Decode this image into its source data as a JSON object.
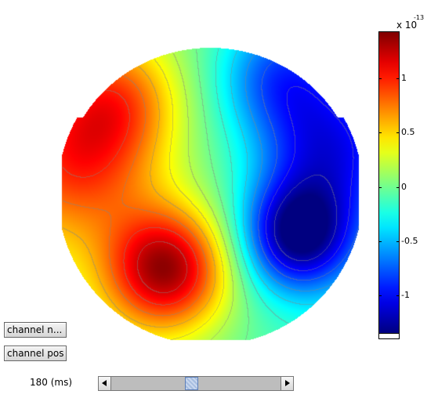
{
  "colorbar": {
    "exponent_base": "x 10",
    "exponent_power": "-13",
    "ticks": [
      {
        "label": "1",
        "value": 1
      },
      {
        "label": "0.5",
        "value": 0.5
      },
      {
        "label": "0",
        "value": 0
      },
      {
        "label": "-0.5",
        "value": -0.5
      },
      {
        "label": "-1",
        "value": -1
      }
    ],
    "range": [
      -1.35,
      1.43
    ],
    "colormap": "jet"
  },
  "controls": {
    "channel_names_label": "channel n...",
    "channel_pos_label": "channel pos",
    "time_label": "180 (ms)",
    "slider_value_fraction": 0.47
  },
  "topoplot": {
    "type": "scalp-topography",
    "contours": true,
    "sources": [
      {
        "name": "positive-left-posterior",
        "amp": 1.3
      },
      {
        "name": "positive-left-temporal",
        "amp": 0.75
      },
      {
        "name": "positive-left-frontal",
        "amp": 0.6
      },
      {
        "name": "negative-right-posterior",
        "amp": -1.25
      },
      {
        "name": "negative-right-temporal",
        "amp": -0.8
      },
      {
        "name": "negative-right-frontal",
        "amp": -0.65
      }
    ]
  }
}
